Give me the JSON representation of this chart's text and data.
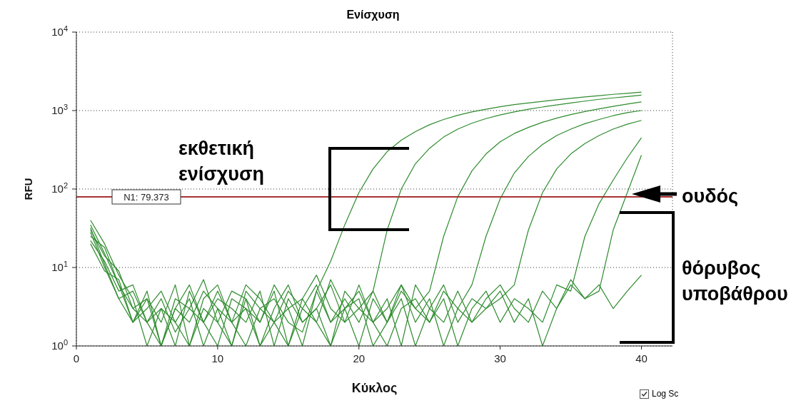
{
  "chart_data": {
    "type": "line",
    "title": "Ενίσχυση",
    "xlabel": "Κύκλος",
    "ylabel": "RFU",
    "log": "y",
    "grid": true,
    "marker": "none",
    "line_style": "solid",
    "x": [
      1,
      2,
      3,
      4,
      5,
      6,
      7,
      8,
      9,
      10,
      11,
      12,
      13,
      14,
      15,
      16,
      17,
      18,
      19,
      20,
      21,
      22,
      23,
      24,
      25,
      26,
      27,
      28,
      29,
      30,
      31,
      32,
      33,
      34,
      35,
      36,
      37,
      38,
      39,
      40
    ],
    "xlim": [
      0,
      42.2
    ],
    "xticks": [
      0,
      10,
      20,
      30,
      40
    ],
    "ylim": [
      1,
      10000
    ],
    "yticks": [
      {
        "value": 1,
        "label": "10$^{0}$"
      },
      {
        "value": 10,
        "label": "10$^{1}$"
      },
      {
        "value": 100,
        "label": "10$^{2}$"
      },
      {
        "value": 1000,
        "label": "10$^{3}$"
      },
      {
        "value": 10000,
        "label": "10$^{4}$"
      }
    ],
    "series": [
      {
        "color": "#2e8b2e",
        "values": [
          35,
          15,
          6,
          3,
          2,
          4,
          1.5,
          3,
          2,
          5,
          2,
          1,
          3,
          4,
          2,
          1.5,
          5,
          12,
          35,
          90,
          180,
          300,
          420,
          540,
          660,
          770,
          870,
          960,
          1040,
          1120,
          1190,
          1250,
          1310,
          1370,
          1430,
          1490,
          1550,
          1610,
          1660,
          1720
        ]
      },
      {
        "color": "#2e8b2e",
        "values": [
          28,
          10,
          4,
          2,
          5,
          1,
          3,
          6,
          2,
          1,
          4,
          3,
          2,
          5,
          1,
          3,
          6,
          2,
          4,
          2,
          5,
          30,
          100,
          210,
          330,
          460,
          580,
          690,
          790,
          880,
          960,
          1040,
          1110,
          1180,
          1250,
          1320,
          1390,
          1450,
          1510,
          1570
        ]
      },
      {
        "color": "#2e8b2e",
        "values": [
          40,
          20,
          8,
          4,
          1,
          3,
          2,
          1,
          4,
          6,
          2,
          3,
          1,
          2,
          5,
          3,
          2,
          7,
          3,
          1,
          4,
          2,
          6,
          3,
          5,
          25,
          80,
          170,
          280,
          400,
          510,
          610,
          710,
          800,
          890,
          970,
          1050,
          1130,
          1210,
          1290
        ]
      },
      {
        "color": "#2e8b2e",
        "values": [
          22,
          12,
          5,
          6,
          2,
          1,
          4,
          3,
          7,
          2,
          1,
          5,
          3,
          2,
          1,
          4,
          8,
          3,
          2,
          6,
          2,
          1,
          3,
          4,
          2,
          5,
          3,
          6,
          25,
          75,
          160,
          260,
          370,
          480,
          580,
          680,
          770,
          860,
          940,
          1000
        ]
      },
      {
        "color": "#2e8b2e",
        "values": [
          30,
          14,
          9,
          3,
          4,
          2,
          6,
          1,
          3,
          2,
          5,
          4,
          1,
          3,
          6,
          2,
          3,
          1,
          5,
          3,
          2,
          4,
          1,
          6,
          3,
          2,
          5,
          2,
          3,
          4,
          6,
          30,
          90,
          180,
          280,
          380,
          480,
          580,
          670,
          750
        ]
      },
      {
        "color": "#2e8b2e",
        "values": [
          25,
          18,
          6,
          2,
          3,
          5,
          2,
          4,
          1,
          3,
          2,
          6,
          4,
          2,
          3,
          1,
          5,
          2,
          3,
          4,
          1,
          2,
          5,
          3,
          2,
          4,
          1,
          3,
          5,
          2,
          4,
          3,
          2,
          6,
          5,
          25,
          65,
          130,
          250,
          450
        ]
      },
      {
        "color": "#2e8b2e",
        "values": [
          32,
          11,
          4,
          5,
          2,
          3,
          1,
          5,
          2,
          4,
          3,
          2,
          5,
          1,
          4,
          2,
          3,
          6,
          2,
          3,
          5,
          2,
          4,
          1,
          3,
          6,
          2,
          4,
          3,
          5,
          2,
          4,
          1,
          3,
          6,
          4,
          5,
          30,
          90,
          270
        ]
      },
      {
        "color": "#2e8b2e",
        "values": [
          20,
          9,
          7,
          2,
          4,
          1,
          3,
          2,
          5,
          3,
          1,
          4,
          2,
          6,
          3,
          4,
          2,
          1,
          3,
          5,
          2,
          3,
          6,
          2,
          4,
          1,
          3,
          2,
          4,
          6,
          3,
          2,
          5,
          3,
          7,
          4,
          6,
          3,
          5,
          8
        ]
      }
    ],
    "ref_lines": [
      {
        "axis": "y",
        "value": 79.373,
        "label": "N1: 79.373",
        "color": "#a83232"
      }
    ],
    "annotations": [
      "εκθετική ενίσχυση",
      "ουδός",
      "θόρυβος υποβάθρου",
      "Log Sc"
    ]
  }
}
